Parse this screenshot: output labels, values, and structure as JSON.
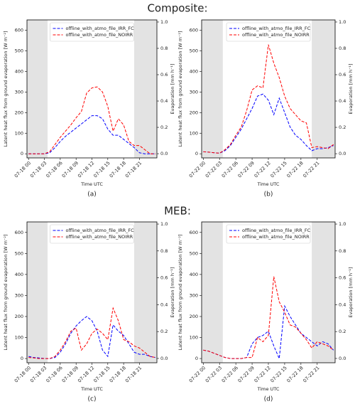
{
  "headings": [
    "Composite:",
    "MEB:"
  ],
  "chart_data": [
    {
      "type": "line",
      "caption": "(a)",
      "xlabel": "Time UTC",
      "ylabel": "Latent heat flux from ground evaporation [W m⁻²]",
      "y2label": "Evaporation [mm h⁻¹]",
      "x": [
        0,
        1,
        2,
        3,
        4,
        5,
        6,
        7,
        8,
        9,
        10,
        11,
        12,
        13,
        14,
        15,
        16,
        17,
        18,
        19,
        20,
        21,
        22,
        23,
        24
      ],
      "series": [
        {
          "name": "offline_with_atmo_file_IRR_FC",
          "color": "#0000ff",
          "values": [
            0,
            0,
            0,
            0,
            5,
            30,
            60,
            85,
            105,
            125,
            145,
            165,
            185,
            185,
            170,
            120,
            90,
            90,
            70,
            50,
            30,
            5,
            0,
            0,
            0
          ]
        },
        {
          "name": "offline_with_atmo_file_NOIRR",
          "color": "#ff0000",
          "values": [
            0,
            0,
            0,
            0,
            10,
            45,
            80,
            110,
            140,
            175,
            205,
            295,
            320,
            325,
            300,
            230,
            110,
            170,
            140,
            60,
            40,
            40,
            20,
            0,
            0
          ]
        }
      ],
      "xlim": [
        -0.3,
        24.3
      ],
      "ylim": [
        -20,
        650
      ],
      "y2lim": [
        -0.032,
        1.016
      ],
      "xticks": [
        {
          "value": 0,
          "label": "07-18 00"
        },
        {
          "value": 3,
          "label": "07-18 03"
        },
        {
          "value": 6,
          "label": "07-18 06"
        },
        {
          "value": 9,
          "label": "07-18 09"
        },
        {
          "value": 12,
          "label": "07-18 12"
        },
        {
          "value": 15,
          "label": "07-18 15"
        },
        {
          "value": 18,
          "label": "07-18 18"
        },
        {
          "value": 21,
          "label": "07-18 21"
        }
      ],
      "yticks": [
        0,
        100,
        200,
        300,
        400,
        500,
        600
      ],
      "y2ticks": [
        {
          "value": 0,
          "label": "0.0"
        },
        {
          "value": 0.2,
          "label": "0.2"
        },
        {
          "value": 0.4,
          "label": "0.4"
        },
        {
          "value": 0.6,
          "label": "0.6"
        },
        {
          "value": 0.8,
          "label": "0.8"
        },
        {
          "value": 1,
          "label": "1.0"
        }
      ],
      "shaded": [
        [
          -0.3,
          3.6
        ],
        [
          20,
          24.3
        ]
      ],
      "legend": "upper center"
    },
    {
      "type": "line",
      "caption": "(b)",
      "xlabel": "Time UTC",
      "ylabel": "Latent heat flux from ground evaporation [W m⁻²]",
      "y2label": "Evaporation [mm h⁻¹]",
      "x": [
        0,
        1,
        2,
        3,
        4,
        5,
        6,
        7,
        8,
        9,
        10,
        11,
        12,
        13,
        14,
        15,
        16,
        17,
        18,
        19,
        20,
        21,
        22,
        23,
        24
      ],
      "series": [
        {
          "name": "offline_with_atmo_file_IRR_FC",
          "color": "#0000ff",
          "values": [
            10,
            8,
            5,
            3,
            15,
            40,
            80,
            120,
            170,
            220,
            280,
            290,
            260,
            190,
            270,
            200,
            130,
            90,
            70,
            40,
            15,
            25,
            25,
            30,
            40
          ]
        },
        {
          "name": "offline_with_atmo_file_NOIRR",
          "color": "#ff0000",
          "values": [
            10,
            8,
            5,
            3,
            20,
            45,
            90,
            130,
            210,
            310,
            330,
            320,
            530,
            440,
            370,
            280,
            220,
            190,
            160,
            150,
            30,
            35,
            30,
            25,
            45
          ]
        }
      ],
      "xlim": [
        -0.3,
        24.3
      ],
      "ylim": [
        -20,
        650
      ],
      "y2lim": [
        -0.032,
        1.016
      ],
      "xticks": [
        {
          "value": 0,
          "label": "07-22 00"
        },
        {
          "value": 3,
          "label": "07-22 03"
        },
        {
          "value": 6,
          "label": "07-22 06"
        },
        {
          "value": 9,
          "label": "07-22 09"
        },
        {
          "value": 12,
          "label": "07-22 12"
        },
        {
          "value": 15,
          "label": "07-22 15"
        },
        {
          "value": 18,
          "label": "07-22 18"
        },
        {
          "value": 21,
          "label": "07-22 21"
        }
      ],
      "yticks": [
        0,
        100,
        200,
        300,
        400,
        500,
        600
      ],
      "y2ticks": [
        {
          "value": 0,
          "label": "0.0"
        },
        {
          "value": 0.2,
          "label": "0.2"
        },
        {
          "value": 0.4,
          "label": "0.4"
        },
        {
          "value": 0.6,
          "label": "0.6"
        },
        {
          "value": 0.8,
          "label": "0.8"
        },
        {
          "value": 1,
          "label": "1.0"
        }
      ],
      "shaded": [
        [
          -0.3,
          3.6
        ],
        [
          20,
          24.3
        ]
      ],
      "legend": "upper center"
    },
    {
      "type": "line",
      "caption": "(c)",
      "xlabel": "Time UTC",
      "ylabel": "Latent heat flux from ground evaporation [W m⁻²]",
      "y2label": "Evaporation [mm h⁻¹]",
      "x": [
        0,
        1,
        2,
        3,
        4,
        5,
        6,
        7,
        8,
        9,
        10,
        11,
        12,
        13,
        14,
        15,
        16,
        17,
        18,
        19,
        20,
        21,
        22,
        23,
        24
      ],
      "series": [
        {
          "name": "offline_with_atmo_file_IRR_FC",
          "color": "#0000ff",
          "values": [
            10,
            5,
            3,
            0,
            0,
            5,
            30,
            70,
            120,
            155,
            180,
            200,
            180,
            130,
            40,
            10,
            160,
            130,
            110,
            70,
            30,
            20,
            20,
            10,
            5
          ]
        },
        {
          "name": "offline_with_atmo_file_NOIRR",
          "color": "#ff0000",
          "values": [
            5,
            3,
            0,
            0,
            0,
            10,
            40,
            80,
            130,
            145,
            40,
            70,
            120,
            140,
            120,
            90,
            240,
            180,
            90,
            80,
            60,
            50,
            30,
            10,
            5
          ]
        }
      ],
      "xlim": [
        -0.3,
        24.3
      ],
      "ylim": [
        -20,
        650
      ],
      "y2lim": [
        -0.032,
        1.016
      ],
      "xticks": [
        {
          "value": 0,
          "label": "07-18 00"
        },
        {
          "value": 3,
          "label": "07-18 03"
        },
        {
          "value": 6,
          "label": "07-18 06"
        },
        {
          "value": 9,
          "label": "07-18 09"
        },
        {
          "value": 12,
          "label": "07-18 12"
        },
        {
          "value": 15,
          "label": "07-18 15"
        },
        {
          "value": 18,
          "label": "07-18 18"
        },
        {
          "value": 21,
          "label": "07-18 21"
        }
      ],
      "yticks": [
        0,
        100,
        200,
        300,
        400,
        500,
        600
      ],
      "y2ticks": [
        {
          "value": 0,
          "label": "0.0"
        },
        {
          "value": 0.2,
          "label": "0.2"
        },
        {
          "value": 0.4,
          "label": "0.4"
        },
        {
          "value": 0.6,
          "label": "0.6"
        },
        {
          "value": 0.8,
          "label": "0.8"
        },
        {
          "value": 1,
          "label": "1.0"
        }
      ],
      "shaded": [
        [
          -0.3,
          3.6
        ],
        [
          20,
          24.3
        ]
      ],
      "legend": "upper center"
    },
    {
      "type": "line",
      "caption": "(d)",
      "xlabel": "Time UTC",
      "ylabel": "Latent heat flux from ground evaporation [W m⁻²]",
      "y2label": "Evaporation [mm h⁻¹]",
      "x": [
        0,
        1,
        2,
        3,
        4,
        5,
        6,
        7,
        8,
        9,
        10,
        11,
        12,
        13,
        14,
        15,
        16,
        17,
        18,
        19,
        20,
        21,
        22,
        23,
        24
      ],
      "series": [
        {
          "name": "offline_with_atmo_file_IRR_FC",
          "color": "#0000ff",
          "values": [
            40,
            35,
            25,
            15,
            5,
            0,
            0,
            0,
            5,
            70,
            100,
            110,
            130,
            60,
            0,
            250,
            200,
            160,
            120,
            100,
            80,
            60,
            80,
            70,
            40
          ]
        },
        {
          "name": "offline_with_atmo_file_NOIRR",
          "color": "#ff0000",
          "values": [
            40,
            35,
            25,
            15,
            5,
            0,
            0,
            0,
            5,
            5,
            100,
            80,
            110,
            390,
            270,
            220,
            160,
            150,
            120,
            90,
            50,
            80,
            70,
            60,
            40
          ]
        }
      ],
      "xlim": [
        -0.3,
        24.3
      ],
      "ylim": [
        -20,
        650
      ],
      "y2lim": [
        -0.032,
        1.016
      ],
      "xticks": [
        {
          "value": 0,
          "label": "07-22 00"
        },
        {
          "value": 3,
          "label": "07-22 03"
        },
        {
          "value": 6,
          "label": "07-22 06"
        },
        {
          "value": 9,
          "label": "07-22 09"
        },
        {
          "value": 12,
          "label": "07-22 12"
        },
        {
          "value": 15,
          "label": "07-22 15"
        },
        {
          "value": 18,
          "label": "07-22 18"
        },
        {
          "value": 21,
          "label": "07-22 21"
        }
      ],
      "yticks": [
        0,
        100,
        200,
        300,
        400,
        500,
        600
      ],
      "y2ticks": [
        {
          "value": 0,
          "label": "0.0"
        },
        {
          "value": 0.2,
          "label": "0.2"
        },
        {
          "value": 0.4,
          "label": "0.4"
        },
        {
          "value": 0.6,
          "label": "0.6"
        },
        {
          "value": 0.8,
          "label": "0.8"
        },
        {
          "value": 1,
          "label": "1.0"
        }
      ],
      "shaded": [
        [
          -0.3,
          3.6
        ],
        [
          20,
          24.3
        ]
      ],
      "legend": "upper center"
    }
  ]
}
